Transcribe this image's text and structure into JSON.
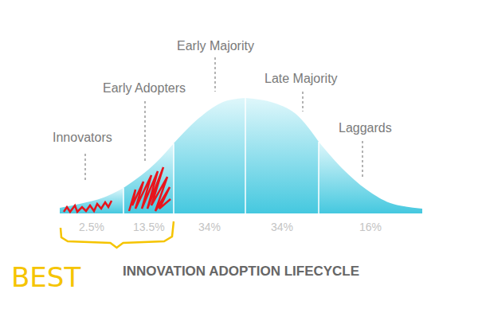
{
  "chart_data": {
    "type": "area",
    "title": "INNOVATION ADOPTION LIFECYCLE",
    "x": [
      0,
      25,
      55,
      80,
      105,
      125,
      143,
      175,
      205,
      233,
      265,
      295,
      325,
      355,
      385,
      415,
      455
    ],
    "values": [
      7,
      12,
      20,
      32,
      50,
      68,
      88,
      120,
      140,
      145,
      140,
      126,
      90,
      56,
      30,
      13,
      6
    ],
    "xlim": [
      0,
      455
    ],
    "ylim": [
      0,
      145
    ],
    "tick_labels": false,
    "grid": false,
    "color": "#45c8df",
    "segments": [
      {
        "name": "Innovators",
        "start": 0,
        "end": 80,
        "share": 2.5,
        "share_label": "2.5%"
      },
      {
        "name": "Early Adopters",
        "start": 80,
        "end": 143,
        "share": 13.5,
        "share_label": "13.5%"
      },
      {
        "name": "Early Majority",
        "start": 143,
        "end": 233,
        "share": 34,
        "share_label": "34%"
      },
      {
        "name": "Late Majority",
        "start": 233,
        "end": 325,
        "share": 34,
        "share_label": "34%"
      },
      {
        "name": "Laggards",
        "start": 325,
        "end": 455,
        "share": 16,
        "share_label": "16%"
      }
    ],
    "annotations": [
      {
        "text": "BEST",
        "from": 0,
        "to": 143
      }
    ]
  }
}
